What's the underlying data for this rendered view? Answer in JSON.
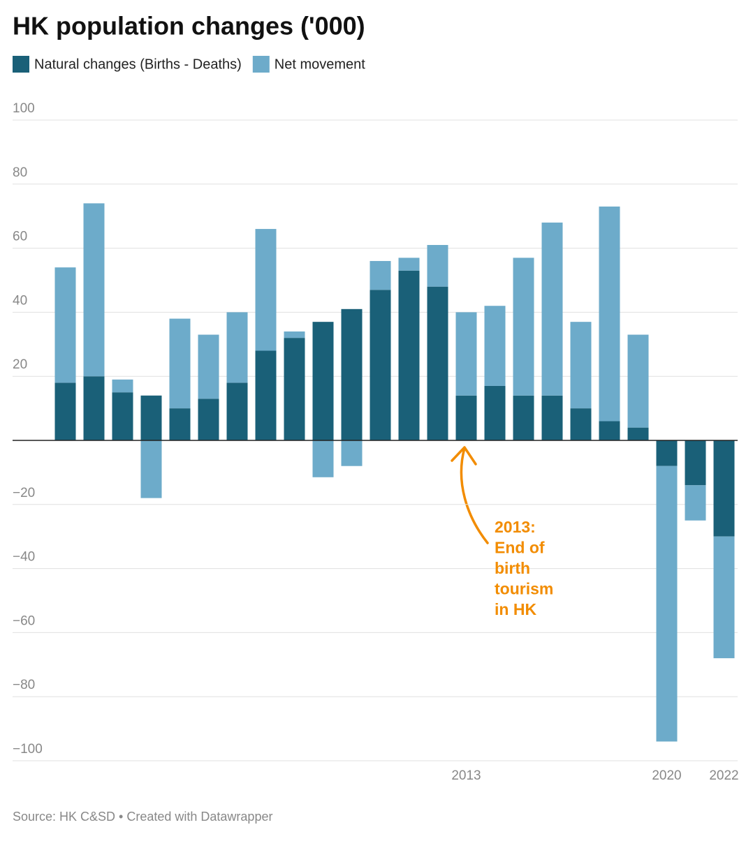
{
  "chart_data": {
    "type": "stacked_bar",
    "title": "HK population changes ('000)",
    "categories": [
      null,
      null,
      null,
      null,
      null,
      null,
      null,
      null,
      null,
      null,
      null,
      null,
      null,
      null,
      "2013",
      null,
      null,
      null,
      null,
      null,
      null,
      "2020",
      null,
      "2022"
    ],
    "series": [
      {
        "name": "Natural changes (Births - Deaths)",
        "color": "#1a6078",
        "values": [
          18,
          20,
          15,
          14,
          10,
          13,
          18,
          28,
          32,
          37,
          41,
          47,
          53,
          48,
          14,
          17,
          14,
          14,
          10,
          6,
          4,
          -8,
          -14,
          -30
        ]
      },
      {
        "name": "Net movement",
        "color": "#6dabca",
        "values": [
          36,
          54,
          4,
          -18,
          28,
          20,
          22,
          38,
          2,
          -11.5,
          -8,
          9,
          4,
          13,
          26,
          25,
          43,
          54,
          27,
          67,
          29,
          -86,
          -11,
          -38
        ]
      }
    ],
    "ylim": [
      -100,
      100
    ],
    "yticks": [
      100,
      80,
      60,
      40,
      20,
      {
        "value": -20,
        "label": "−20"
      },
      {
        "value": -40,
        "label": "−40"
      },
      {
        "value": -60,
        "label": "−60"
      },
      {
        "value": -80,
        "label": "−80"
      },
      {
        "value": -100,
        "label": "−100"
      }
    ],
    "grid": true,
    "annotation": [
      "2013:",
      "End of",
      "birth",
      "tourism",
      "in HK"
    ],
    "source": "Source: HK C&SD • Created with Datawrapper"
  }
}
